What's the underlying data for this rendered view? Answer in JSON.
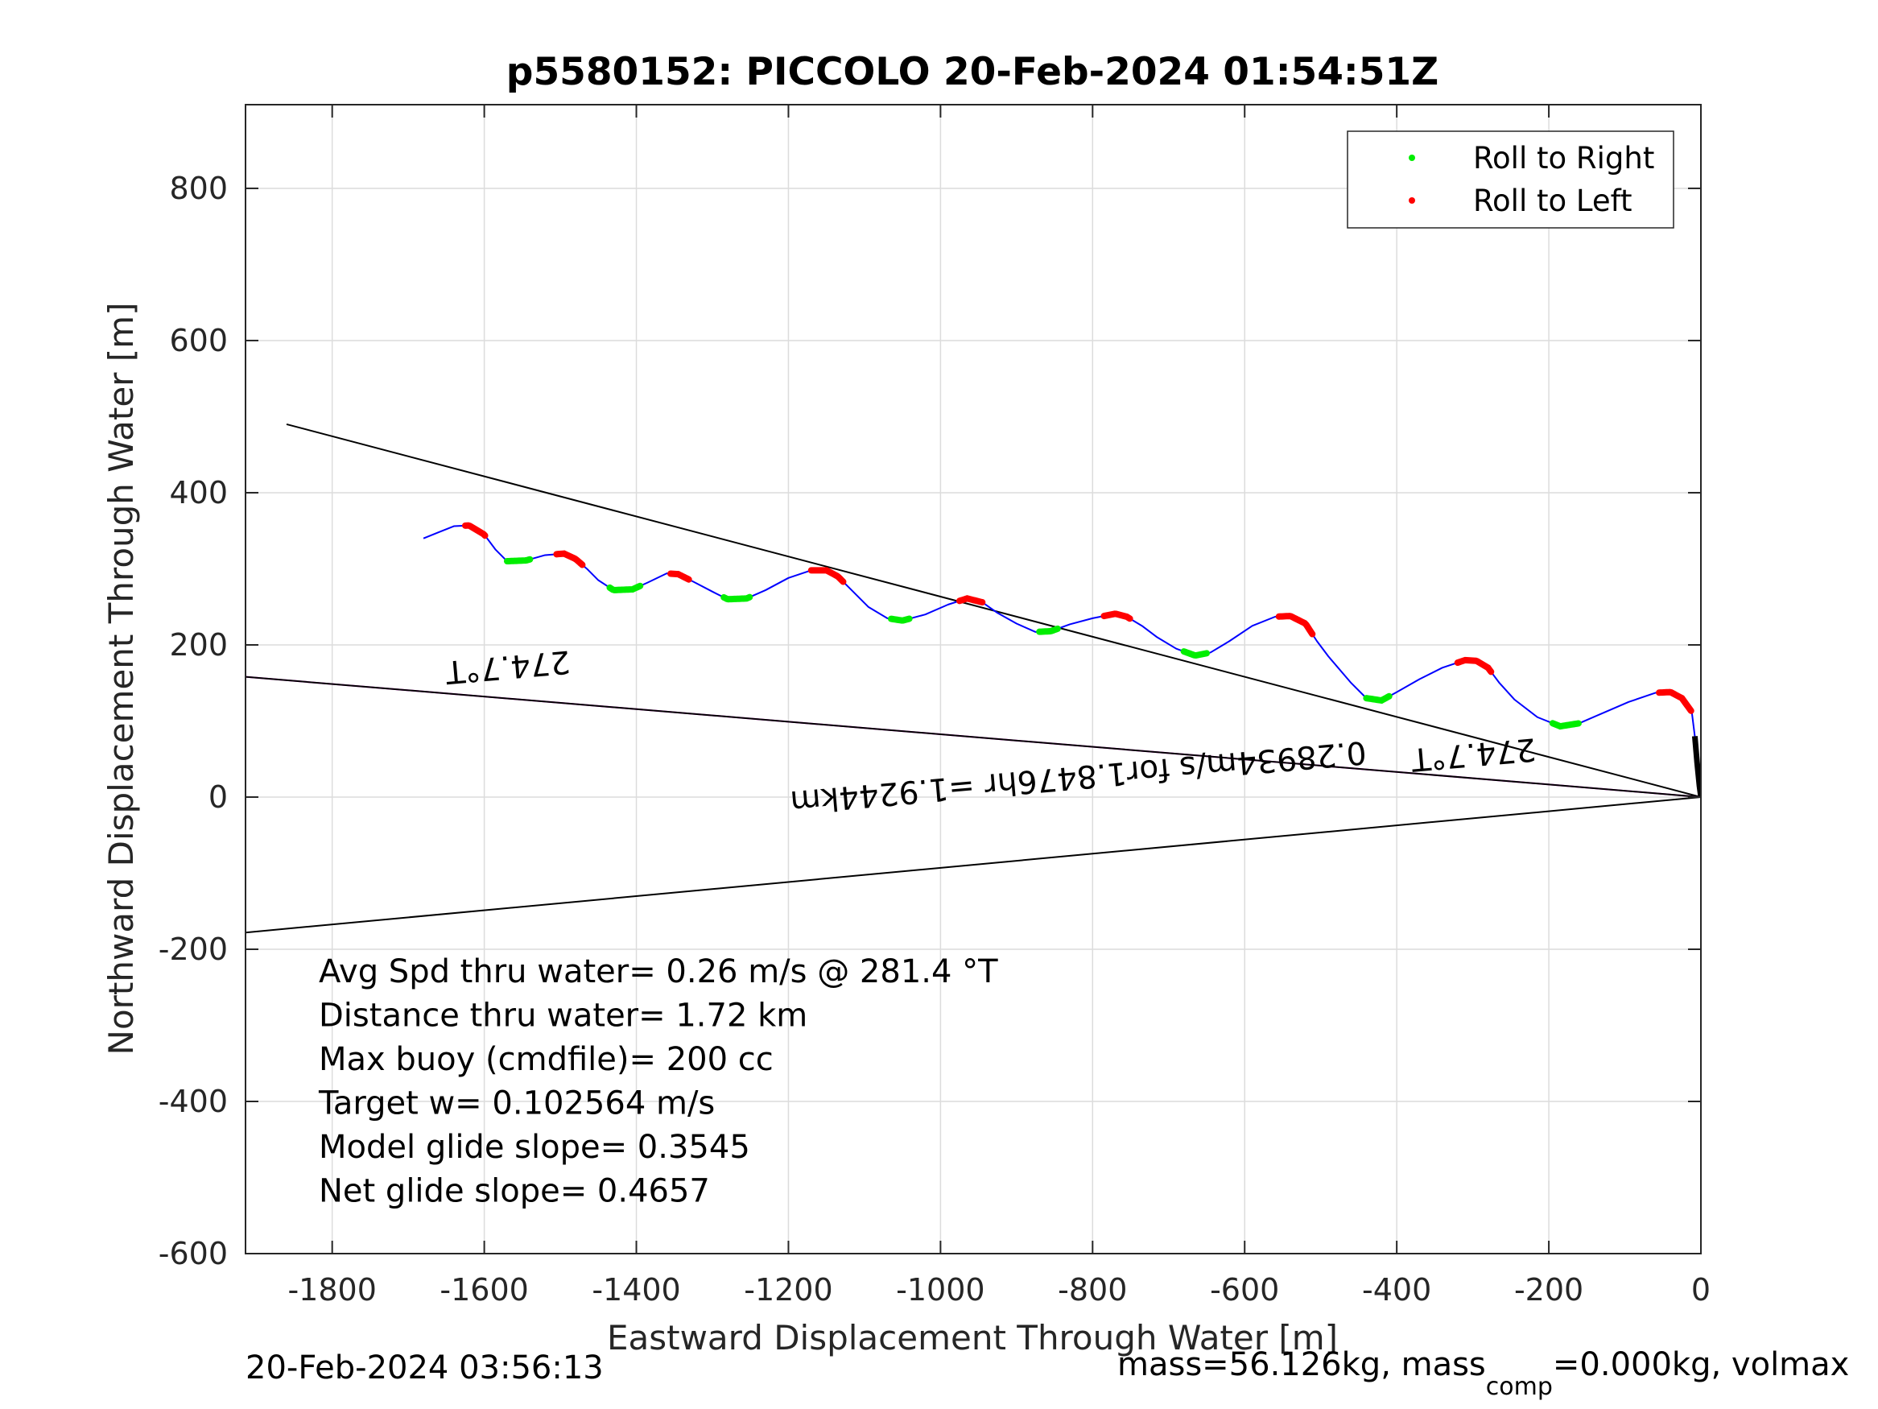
{
  "chart_data": {
    "type": "line",
    "title": "p5580152: PICCOLO 20-Feb-2024 01:54:51Z",
    "xlabel": "Eastward Displacement Through Water [m]",
    "ylabel": "Northward Displacement Through Water [m]",
    "xlim": [
      -1914,
      0
    ],
    "ylim": [
      -600,
      910
    ],
    "xticks": [
      -1800,
      -1600,
      -1400,
      -1200,
      -1000,
      -800,
      -600,
      -400,
      -200,
      0
    ],
    "yticks": [
      -600,
      -400,
      -200,
      0,
      200,
      400,
      600,
      800
    ],
    "grid": true,
    "legend": {
      "placement": "top-right",
      "entries": [
        {
          "label": "Roll to Right",
          "color": "#00ee00"
        },
        {
          "label": "Roll to Left",
          "color": "#ff0000"
        }
      ]
    },
    "track": {
      "color": "#0000ff",
      "points": [
        [
          -1680,
          340
        ],
        [
          -1660,
          348
        ],
        [
          -1640,
          356
        ],
        [
          -1620,
          357
        ],
        [
          -1600,
          345
        ],
        [
          -1585,
          325
        ],
        [
          -1570,
          310
        ],
        [
          -1545,
          311
        ],
        [
          -1520,
          318
        ],
        [
          -1495,
          320
        ],
        [
          -1480,
          313
        ],
        [
          -1465,
          300
        ],
        [
          -1450,
          285
        ],
        [
          -1430,
          272
        ],
        [
          -1405,
          273
        ],
        [
          -1385,
          282
        ],
        [
          -1360,
          294
        ],
        [
          -1345,
          293
        ],
        [
          -1325,
          283
        ],
        [
          -1300,
          270
        ],
        [
          -1280,
          260
        ],
        [
          -1255,
          261
        ],
        [
          -1230,
          272
        ],
        [
          -1200,
          288
        ],
        [
          -1170,
          298
        ],
        [
          -1150,
          298
        ],
        [
          -1135,
          290
        ],
        [
          -1120,
          275
        ],
        [
          -1095,
          250
        ],
        [
          -1070,
          235
        ],
        [
          -1050,
          232
        ],
        [
          -1020,
          240
        ],
        [
          -990,
          253
        ],
        [
          -965,
          261
        ],
        [
          -945,
          256
        ],
        [
          -925,
          242
        ],
        [
          -900,
          228
        ],
        [
          -875,
          217
        ],
        [
          -855,
          218
        ],
        [
          -830,
          227
        ],
        [
          -800,
          235
        ],
        [
          -770,
          241
        ],
        [
          -755,
          237
        ],
        [
          -735,
          225
        ],
        [
          -715,
          210
        ],
        [
          -690,
          195
        ],
        [
          -665,
          186
        ],
        [
          -645,
          190
        ],
        [
          -620,
          205
        ],
        [
          -590,
          225
        ],
        [
          -560,
          237
        ],
        [
          -540,
          238
        ],
        [
          -520,
          228
        ],
        [
          -505,
          205
        ],
        [
          -490,
          185
        ],
        [
          -460,
          150
        ],
        [
          -440,
          130
        ],
        [
          -420,
          127
        ],
        [
          -400,
          138
        ],
        [
          -370,
          155
        ],
        [
          -340,
          170
        ],
        [
          -310,
          180
        ],
        [
          -295,
          179
        ],
        [
          -280,
          170
        ],
        [
          -265,
          150
        ],
        [
          -245,
          128
        ],
        [
          -215,
          105
        ],
        [
          -185,
          93
        ],
        [
          -160,
          97
        ],
        [
          -130,
          110
        ],
        [
          -95,
          125
        ],
        [
          -60,
          137
        ],
        [
          -40,
          138
        ],
        [
          -25,
          130
        ],
        [
          -12,
          112
        ],
        [
          -8,
          80
        ],
        [
          -5,
          45
        ],
        [
          -2,
          15
        ],
        [
          0,
          0
        ]
      ]
    },
    "roll_right_segments": [
      [
        -1570,
        -1540
      ],
      [
        -1435,
        -1395
      ],
      [
        -1285,
        -1250
      ],
      [
        -1065,
        -1040
      ],
      [
        -870,
        -845
      ],
      [
        -680,
        -650
      ],
      [
        -440,
        -410
      ],
      [
        -195,
        -160
      ]
    ],
    "roll_left_segments": [
      [
        -1625,
        -1598
      ],
      [
        -1505,
        -1470
      ],
      [
        -1355,
        -1330
      ],
      [
        -1170,
        -1128
      ],
      [
        -975,
        -945
      ],
      [
        -785,
        -750
      ],
      [
        -555,
        -510
      ],
      [
        -320,
        -275
      ],
      [
        -55,
        -12
      ]
    ],
    "reference_lines": [
      {
        "from": [
          -1860,
          490
        ],
        "to": [
          0,
          0
        ],
        "color": "#000000"
      },
      {
        "from": [
          -1914,
          -178
        ],
        "to": [
          0,
          0
        ],
        "color": "#000000"
      },
      {
        "from": [
          -1914,
          158
        ],
        "to": [
          0,
          0
        ],
        "color": "#ff00ff"
      },
      {
        "from": [
          -1914,
          158
        ],
        "to": [
          0,
          0
        ],
        "color": "#000000"
      }
    ],
    "annotations": [
      {
        "text": "274.7°T",
        "x": -1570,
        "y": 185,
        "rotation": 175
      },
      {
        "text": "274.7°T",
        "x": -300,
        "y": 70,
        "rotation": 175
      },
      {
        "text": "0.28934m/s for1.8476hr =1.9244km",
        "x": -820,
        "y": 40,
        "rotation": 175
      }
    ],
    "stats": [
      "Avg Spd thru water=  0.26 m/s @ 281.4 °T",
      "Distance thru water=  1.72 km",
      "Max buoy (cmdfile)= 200 cc",
      "Target w= 0.102564 m/s",
      "Model glide slope= 0.3545",
      "Net glide slope= 0.4657"
    ]
  },
  "footer": {
    "timestamp": "20-Feb-2024 03:56:13",
    "mass_prefix": "mass=56.126kg, mass",
    "mass_subscript": "comp",
    "mass_suffix": "=0.000kg, volmax"
  }
}
